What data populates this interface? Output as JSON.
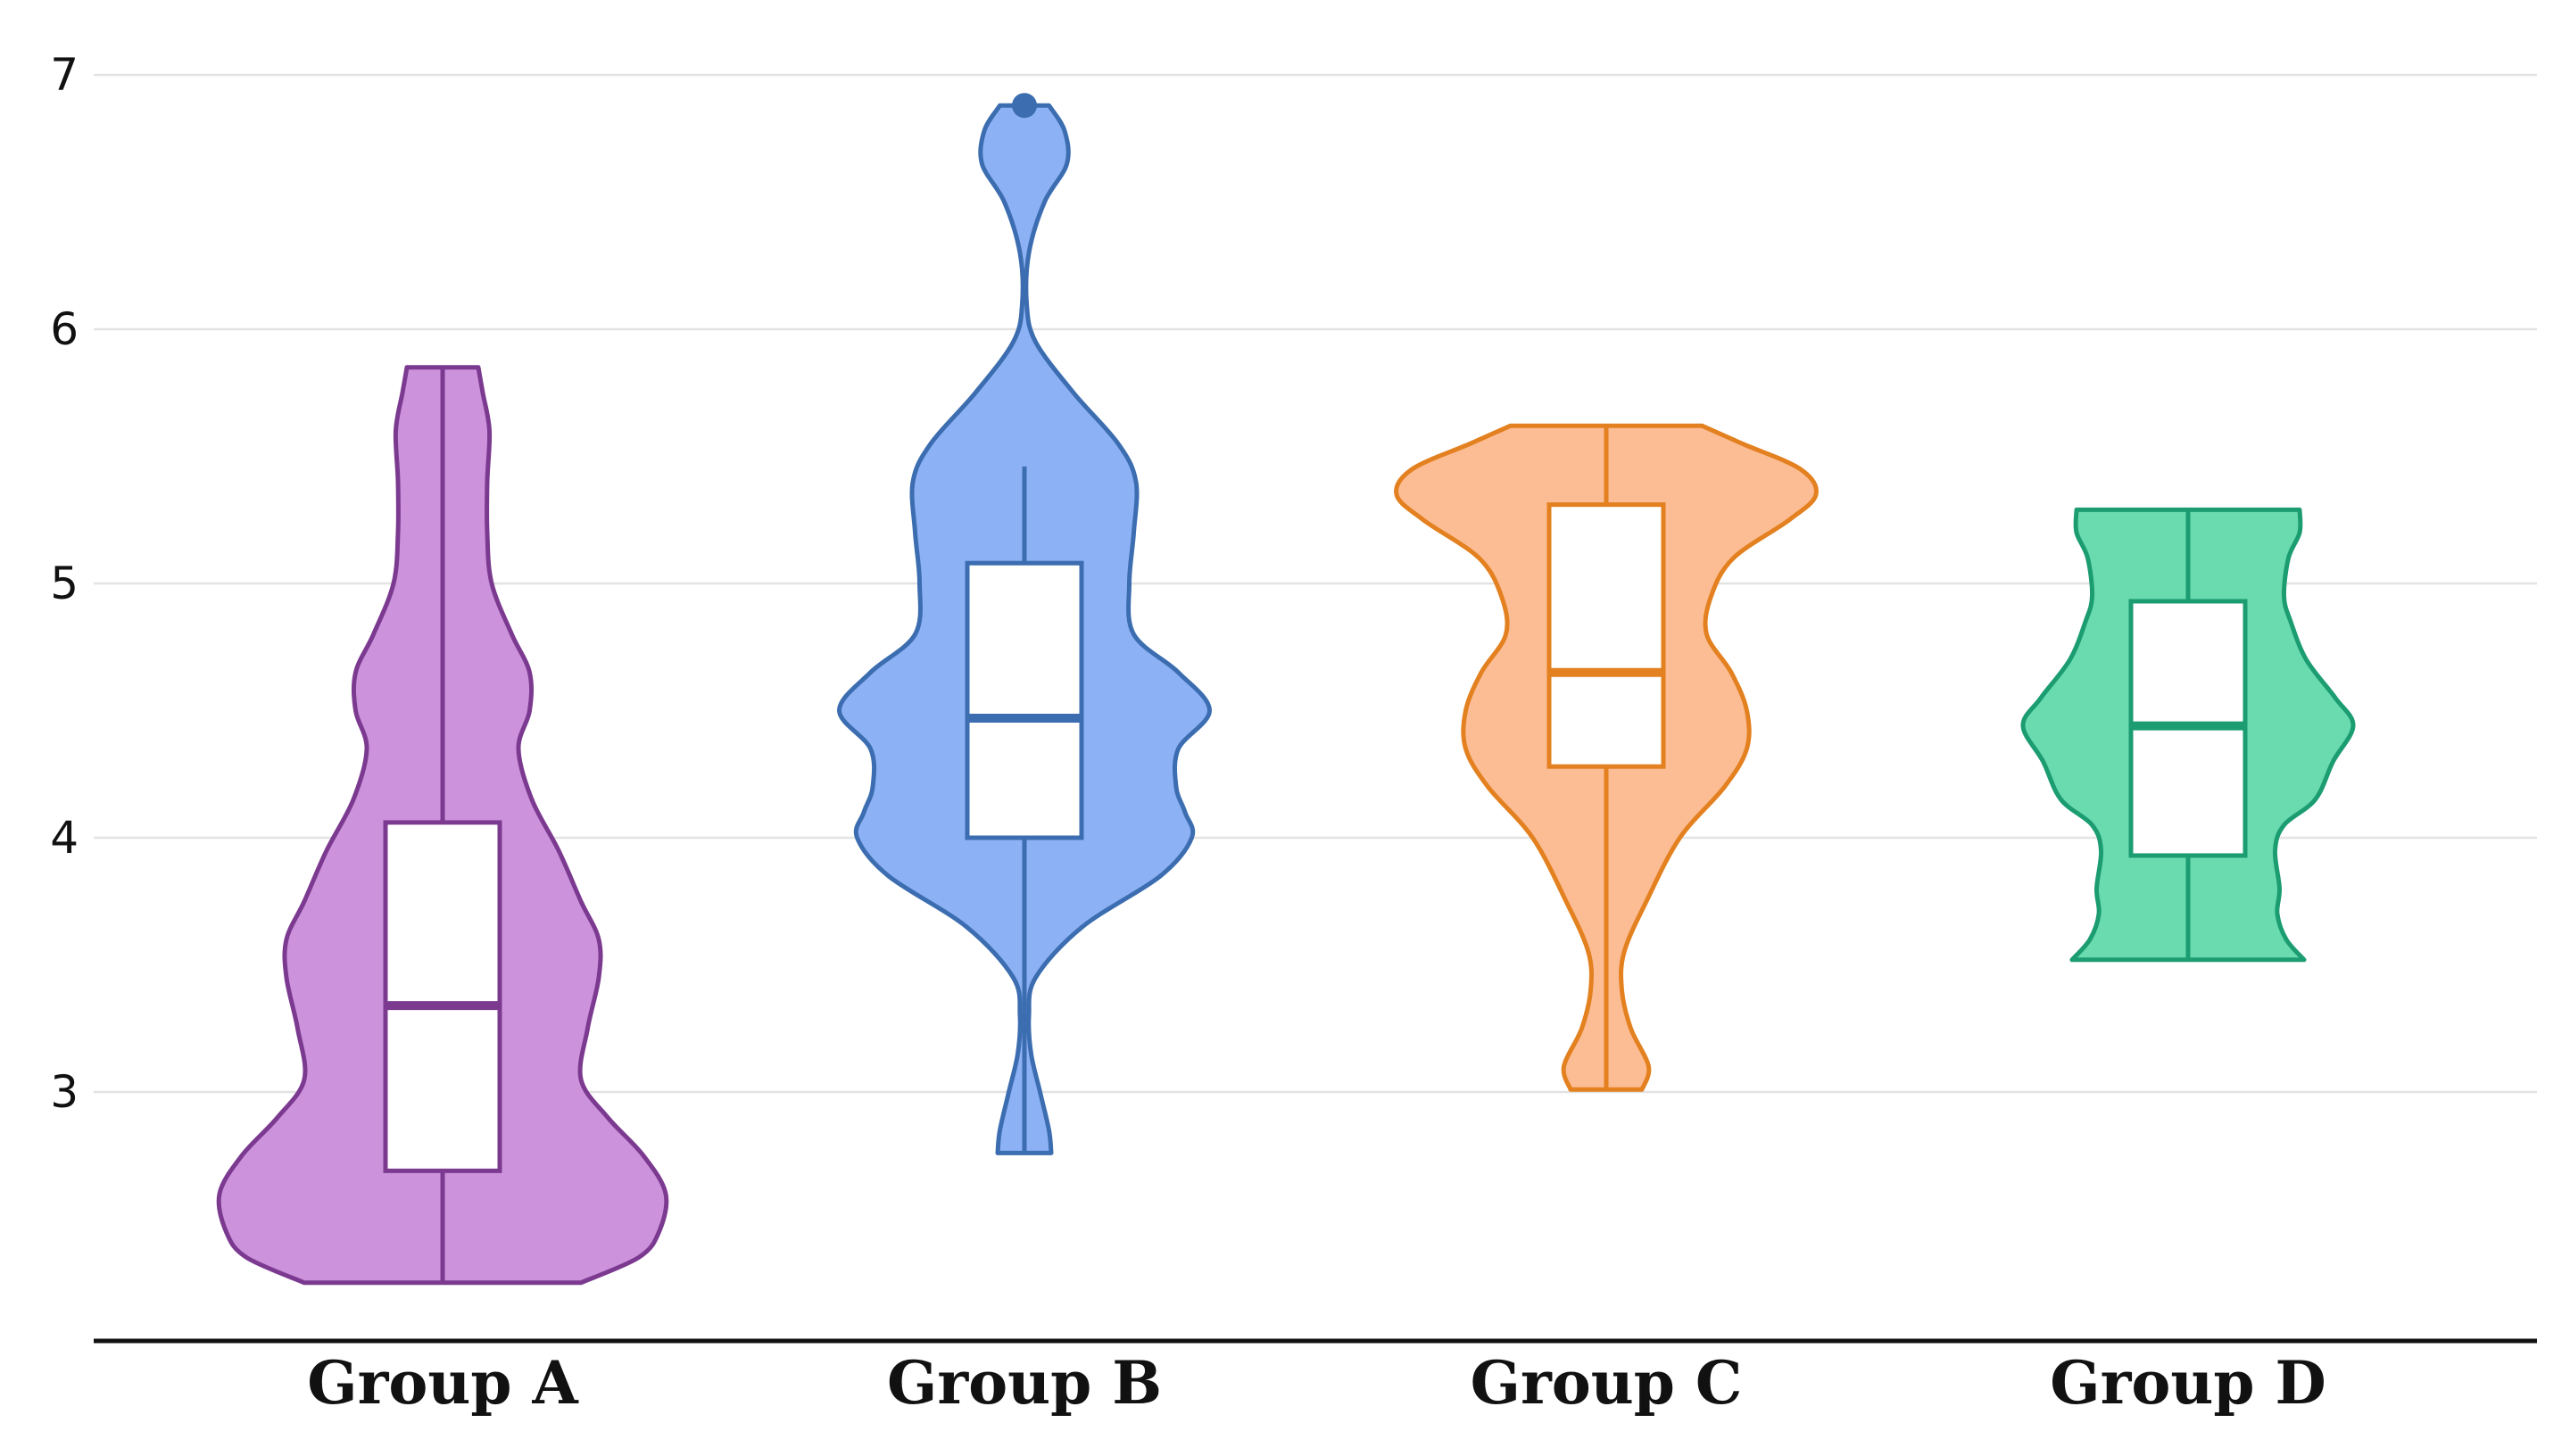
{
  "chart_data": {
    "type": "violin",
    "title": "",
    "xlabel": "",
    "ylabel": "",
    "ylim": [
      2.05,
      7.0
    ],
    "yticks": [
      3,
      4,
      5,
      6,
      7
    ],
    "grid": true,
    "categories": [
      "Group A",
      "Group B",
      "Group C",
      "Group D"
    ],
    "groups": [
      {
        "name": "Group A",
        "fill": "#cc92dc",
        "stroke": "#7b3a90",
        "box": {
          "min": 2.25,
          "q1": 2.69,
          "median": 3.34,
          "q3": 4.06,
          "max": 5.85
        },
        "outliers": [],
        "density": [
          [
            2.25,
            0.62
          ],
          [
            2.35,
            0.88
          ],
          [
            2.45,
            0.97
          ],
          [
            2.6,
            1.0
          ],
          [
            2.75,
            0.9
          ],
          [
            2.9,
            0.74
          ],
          [
            3.05,
            0.62
          ],
          [
            3.25,
            0.65
          ],
          [
            3.45,
            0.7
          ],
          [
            3.6,
            0.7
          ],
          [
            3.75,
            0.62
          ],
          [
            3.95,
            0.52
          ],
          [
            4.15,
            0.4
          ],
          [
            4.35,
            0.34
          ],
          [
            4.5,
            0.39
          ],
          [
            4.65,
            0.39
          ],
          [
            4.8,
            0.31
          ],
          [
            5.0,
            0.22
          ],
          [
            5.2,
            0.2
          ],
          [
            5.4,
            0.2
          ],
          [
            5.6,
            0.21
          ],
          [
            5.75,
            0.18
          ],
          [
            5.85,
            0.16
          ]
        ]
      },
      {
        "name": "Group B",
        "fill": "#8db1f5",
        "stroke": "#3b6db0",
        "box": {
          "min": 2.76,
          "q1": 4.0,
          "median": 4.47,
          "q3": 5.08,
          "max": 5.46
        },
        "outliers": [
          6.88
        ],
        "density": [
          [
            2.76,
            0.12
          ],
          [
            2.85,
            0.11
          ],
          [
            3.0,
            0.07
          ],
          [
            3.15,
            0.03
          ],
          [
            3.3,
            0.02
          ],
          [
            3.45,
            0.05
          ],
          [
            3.65,
            0.26
          ],
          [
            3.85,
            0.61
          ],
          [
            4.0,
            0.75
          ],
          [
            4.1,
            0.72
          ],
          [
            4.2,
            0.68
          ],
          [
            4.35,
            0.69
          ],
          [
            4.5,
            0.83
          ],
          [
            4.65,
            0.69
          ],
          [
            4.8,
            0.49
          ],
          [
            5.0,
            0.47
          ],
          [
            5.2,
            0.49
          ],
          [
            5.4,
            0.5
          ],
          [
            5.55,
            0.42
          ],
          [
            5.75,
            0.22
          ],
          [
            5.95,
            0.05
          ],
          [
            6.1,
            0.01
          ],
          [
            6.3,
            0.02
          ],
          [
            6.5,
            0.09
          ],
          [
            6.65,
            0.19
          ],
          [
            6.78,
            0.18
          ],
          [
            6.88,
            0.11
          ]
        ]
      },
      {
        "name": "Group C",
        "fill": "#fcbc94",
        "stroke": "#e3801f",
        "box": {
          "min": 3.01,
          "q1": 4.28,
          "median": 4.65,
          "q3": 5.31,
          "max": 5.62
        },
        "outliers": [],
        "density": [
          [
            3.01,
            0.16
          ],
          [
            3.1,
            0.19
          ],
          [
            3.25,
            0.11
          ],
          [
            3.4,
            0.07
          ],
          [
            3.55,
            0.08
          ],
          [
            3.75,
            0.18
          ],
          [
            4.0,
            0.33
          ],
          [
            4.2,
            0.53
          ],
          [
            4.35,
            0.63
          ],
          [
            4.5,
            0.63
          ],
          [
            4.65,
            0.56
          ],
          [
            4.8,
            0.45
          ],
          [
            4.95,
            0.47
          ],
          [
            5.1,
            0.57
          ],
          [
            5.25,
            0.82
          ],
          [
            5.35,
            0.94
          ],
          [
            5.45,
            0.87
          ],
          [
            5.55,
            0.61
          ],
          [
            5.62,
            0.43
          ]
        ]
      },
      {
        "name": "Group D",
        "fill": "#6adaaf",
        "stroke": "#1c9c71",
        "box": {
          "min": 3.52,
          "q1": 3.93,
          "median": 4.44,
          "q3": 4.93,
          "max": 5.29
        },
        "outliers": [],
        "density": [
          [
            3.52,
            0.52
          ],
          [
            3.6,
            0.44
          ],
          [
            3.7,
            0.4
          ],
          [
            3.8,
            0.41
          ],
          [
            3.95,
            0.39
          ],
          [
            4.05,
            0.43
          ],
          [
            4.15,
            0.57
          ],
          [
            4.3,
            0.65
          ],
          [
            4.44,
            0.74
          ],
          [
            4.55,
            0.66
          ],
          [
            4.7,
            0.53
          ],
          [
            4.85,
            0.46
          ],
          [
            4.95,
            0.43
          ],
          [
            5.1,
            0.45
          ],
          [
            5.2,
            0.5
          ],
          [
            5.29,
            0.5
          ]
        ]
      }
    ]
  }
}
